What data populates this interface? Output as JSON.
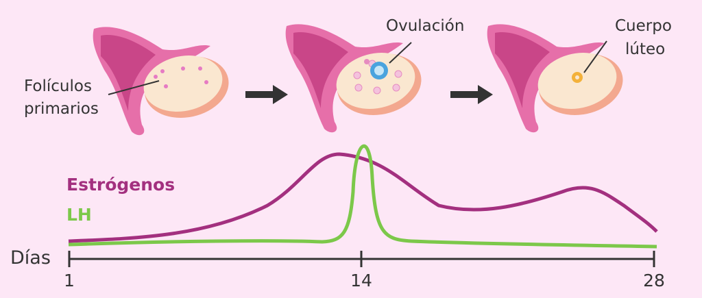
{
  "stages": [
    {
      "label_lines": [
        "Folículos",
        "primarios"
      ]
    },
    {
      "label_lines": [
        "Ovulación"
      ]
    },
    {
      "label_lines": [
        "Cuerpo",
        "lúteo"
      ]
    }
  ],
  "legend": [
    {
      "name": "Estrógenos",
      "color": "#a3307f"
    },
    {
      "name": "LH",
      "color": "#7cc84a"
    }
  ],
  "axis": {
    "label": "Días",
    "ticks": [
      1,
      14,
      28
    ]
  }
}
